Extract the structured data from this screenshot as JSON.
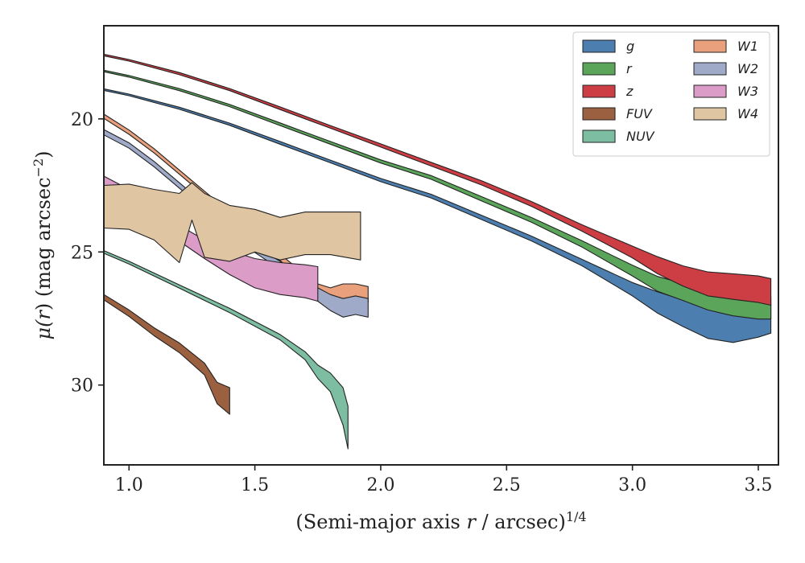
{
  "chart_data": {
    "type": "area",
    "title": "",
    "xlabel": "(Semi-major axis r / arcsec)",
    "xlabel_main": "(Semi-major axis ",
    "xlabel_var": "r",
    "xlabel_rest": " / arcsec)",
    "xlabel_sup": "1/4",
    "ylabel": "μ(r) (mag arcsec⁻²)",
    "ylabel_main": "μ(",
    "ylabel_var": "r",
    "ylabel_rest": ") (mag arcsec",
    "ylabel_sup": "−2",
    "ylabel_close": ")",
    "xlim": [
      0.9,
      3.58
    ],
    "ylim": [
      33.0,
      16.5
    ],
    "y_inverted": true,
    "xticks": [
      "1.0",
      "1.5",
      "2.0",
      "2.5",
      "3.0",
      "3.5"
    ],
    "yticks": [
      "20",
      "25",
      "30"
    ],
    "legend": {
      "location": "top-right",
      "columns": 2
    },
    "grid": false,
    "series": [
      {
        "name": "g",
        "color": "#4c7eaf",
        "x": [
          0.9,
          1.0,
          1.2,
          1.4,
          1.6,
          1.8,
          2.0,
          2.2,
          2.4,
          2.6,
          2.8,
          3.0,
          3.1,
          3.2,
          3.3,
          3.4,
          3.5,
          3.55
        ],
        "y": [
          18.9,
          19.1,
          19.6,
          20.2,
          20.9,
          21.6,
          22.3,
          22.9,
          23.7,
          24.5,
          25.4,
          26.4,
          26.9,
          27.3,
          27.6,
          27.7,
          27.6,
          27.5
        ],
        "err": [
          0.03,
          0.03,
          0.04,
          0.04,
          0.05,
          0.05,
          0.06,
          0.07,
          0.08,
          0.09,
          0.12,
          0.25,
          0.4,
          0.5,
          0.65,
          0.7,
          0.6,
          0.55
        ]
      },
      {
        "name": "r",
        "color": "#5aa55a",
        "x": [
          0.9,
          1.0,
          1.2,
          1.4,
          1.6,
          1.8,
          2.0,
          2.2,
          2.4,
          2.6,
          2.8,
          3.0,
          3.1,
          3.2,
          3.3,
          3.4,
          3.5,
          3.55
        ],
        "y": [
          18.2,
          18.4,
          18.9,
          19.5,
          20.2,
          20.9,
          21.6,
          22.2,
          23.0,
          23.8,
          24.7,
          25.7,
          26.2,
          26.5,
          26.8,
          27.0,
          27.1,
          27.1
        ],
        "err": [
          0.03,
          0.03,
          0.04,
          0.04,
          0.05,
          0.05,
          0.06,
          0.07,
          0.08,
          0.09,
          0.12,
          0.2,
          0.28,
          0.32,
          0.38,
          0.4,
          0.42,
          0.42
        ]
      },
      {
        "name": "z",
        "color": "#cc3d44",
        "x": [
          0.9,
          1.0,
          1.2,
          1.4,
          1.6,
          1.8,
          2.0,
          2.2,
          2.4,
          2.6,
          2.8,
          3.0,
          3.1,
          3.2,
          3.3,
          3.4,
          3.5,
          3.55
        ],
        "y": [
          17.6,
          17.8,
          18.3,
          18.9,
          19.6,
          20.3,
          21.0,
          21.7,
          22.4,
          23.2,
          24.1,
          25.0,
          25.5,
          25.9,
          26.2,
          26.3,
          26.4,
          26.5
        ],
        "err": [
          0.03,
          0.03,
          0.04,
          0.04,
          0.05,
          0.05,
          0.06,
          0.07,
          0.08,
          0.09,
          0.12,
          0.22,
          0.32,
          0.38,
          0.45,
          0.48,
          0.5,
          0.5
        ]
      },
      {
        "name": "FUV",
        "color": "#9a6040",
        "x": [
          0.9,
          1.0,
          1.1,
          1.2,
          1.3,
          1.35,
          1.4
        ],
        "y": [
          26.7,
          27.3,
          28.0,
          28.6,
          29.4,
          30.3,
          30.6
        ],
        "err": [
          0.1,
          0.12,
          0.15,
          0.18,
          0.22,
          0.4,
          0.5
        ]
      },
      {
        "name": "NUV",
        "color": "#7dbda2",
        "x": [
          0.9,
          1.0,
          1.2,
          1.4,
          1.6,
          1.7,
          1.75,
          1.8,
          1.85,
          1.87
        ],
        "y": [
          25.0,
          25.4,
          26.3,
          27.2,
          28.2,
          28.9,
          29.5,
          29.9,
          30.8,
          31.6
        ],
        "err": [
          0.05,
          0.05,
          0.06,
          0.08,
          0.1,
          0.15,
          0.25,
          0.35,
          0.7,
          0.8
        ]
      },
      {
        "name": "W1",
        "color": "#e9a07c",
        "x": [
          0.9,
          1.0,
          1.1,
          1.2,
          1.3,
          1.4,
          1.5,
          1.6,
          1.7,
          1.75,
          1.8,
          1.85,
          1.9,
          1.95
        ],
        "y": [
          19.9,
          20.5,
          21.2,
          22.0,
          22.8,
          23.6,
          24.4,
          25.2,
          26.0,
          26.4,
          26.6,
          26.5,
          26.5,
          26.6
        ],
        "err": [
          0.08,
          0.08,
          0.08,
          0.08,
          0.08,
          0.1,
          0.1,
          0.12,
          0.15,
          0.2,
          0.25,
          0.3,
          0.3,
          0.3
        ]
      },
      {
        "name": "W2",
        "color": "#9eaac8",
        "x": [
          0.9,
          1.0,
          1.1,
          1.2,
          1.3,
          1.4,
          1.5,
          1.6,
          1.7,
          1.75,
          1.8,
          1.85,
          1.9,
          1.95
        ],
        "y": [
          20.5,
          21.0,
          21.7,
          22.5,
          23.3,
          24.1,
          24.9,
          25.5,
          26.2,
          26.6,
          26.9,
          27.1,
          27.0,
          27.1
        ],
        "err": [
          0.1,
          0.1,
          0.1,
          0.1,
          0.1,
          0.12,
          0.12,
          0.15,
          0.2,
          0.25,
          0.3,
          0.35,
          0.35,
          0.35
        ]
      },
      {
        "name": "W3",
        "color": "#dc9cc8",
        "x": [
          0.9,
          1.0,
          1.1,
          1.2,
          1.3,
          1.4,
          1.5,
          1.6,
          1.7,
          1.75
        ],
        "y": [
          22.4,
          22.9,
          23.6,
          24.3,
          24.9,
          25.4,
          25.8,
          26.0,
          26.1,
          26.2
        ],
        "err": [
          0.25,
          0.25,
          0.28,
          0.3,
          0.35,
          0.45,
          0.55,
          0.6,
          0.62,
          0.65
        ]
      },
      {
        "name": "W4",
        "color": "#dfc5a2",
        "x": [
          0.9,
          1.0,
          1.1,
          1.2,
          1.25,
          1.3,
          1.4,
          1.5,
          1.6,
          1.7,
          1.8,
          1.92
        ],
        "y": [
          23.3,
          23.3,
          23.6,
          24.1,
          23.1,
          24.0,
          24.3,
          24.2,
          24.5,
          24.3,
          24.3,
          24.4
        ],
        "err": [
          0.8,
          0.85,
          0.95,
          1.3,
          0.7,
          1.2,
          1.05,
          0.8,
          0.8,
          0.8,
          0.8,
          0.9
        ]
      }
    ]
  }
}
